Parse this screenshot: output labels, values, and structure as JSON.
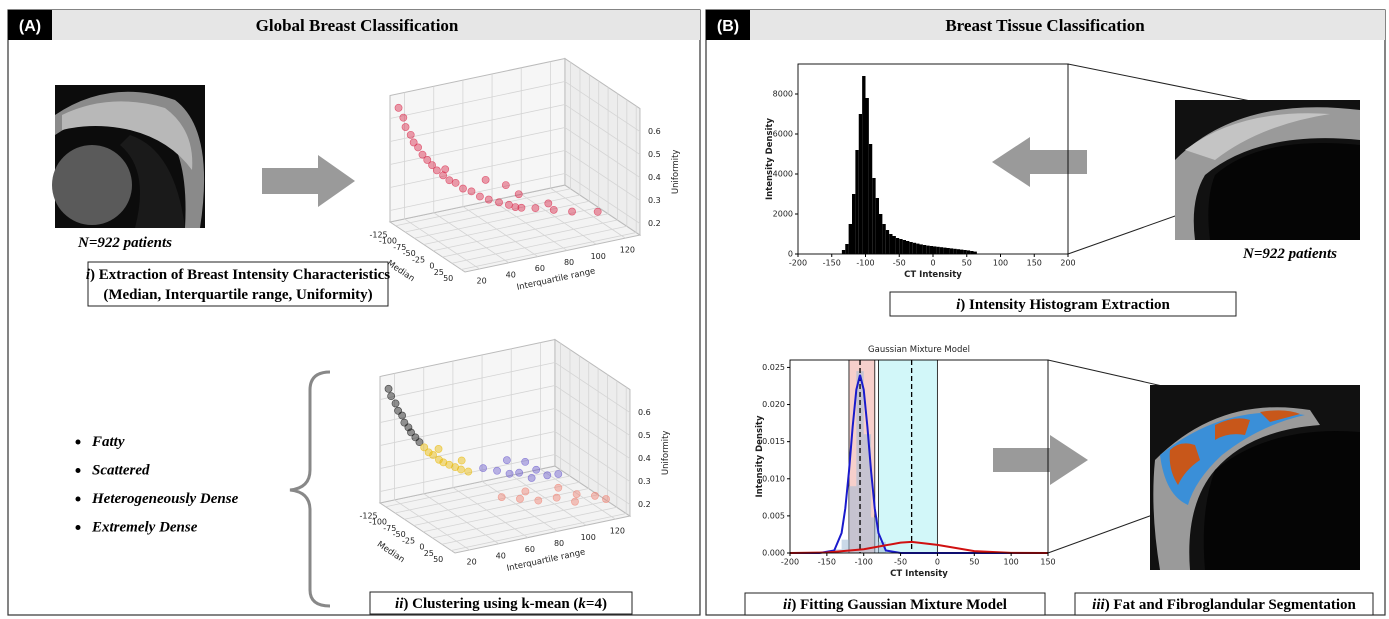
{
  "panel_a": {
    "label": "(A)",
    "title": "Global Breast Classification",
    "patients": "N=922 patients",
    "caption_i": {
      "numeral": "i",
      "text": ") Extraction of Breast Intensity Characteristics",
      "line2": "(Median, Interquartile range, Uniformity)"
    },
    "categories_list": [
      "Fatty",
      "Scattered",
      "Heterogeneously Dense",
      "Extremely Dense"
    ],
    "caption_ii": {
      "numeral": "ii",
      "text": ") Clustering using k-mean (",
      "k": "k",
      "rest": "=4)"
    }
  },
  "panel_b": {
    "label": "(B)",
    "title": "Breast Tissue Classification",
    "patients": "N=922 patients",
    "caption_i": {
      "numeral": "i",
      "text": ") Intensity Histogram Extraction"
    },
    "caption_ii": {
      "numeral": "ii",
      "text": ") Fitting Gaussian Mixture Model"
    },
    "caption_iii": {
      "numeral": "iii",
      "text": ") Fat and Fibroglandular Segmentation"
    }
  },
  "chart_data": [
    {
      "type": "scatter3d",
      "xlabel": "Median",
      "ylabel": "Interquartile range",
      "zlabel": "Uniformity",
      "xlim": [
        -140,
        60
      ],
      "ylim": [
        10,
        130
      ],
      "zlim": [
        0.15,
        0.7
      ],
      "xticks": [
        -125,
        -100,
        -75,
        -50,
        -25,
        0,
        25,
        50
      ],
      "yticks": [
        20,
        40,
        60,
        80,
        100,
        120
      ],
      "zticks": [
        0.2,
        0.3,
        0.4,
        0.5,
        0.6
      ],
      "series": [
        {
          "color": "#d9284a",
          "x": [
            -125,
            -120,
            -118,
            -112,
            -108,
            -104,
            -100,
            -95,
            -90,
            -85,
            -80,
            -75,
            -70,
            -62,
            -55,
            -48,
            -40,
            -32,
            -25,
            -15,
            -5,
            5,
            15,
            25,
            -60,
            -30,
            0,
            -90,
            10,
            -45
          ],
          "y": [
            12,
            14,
            15,
            17,
            18,
            20,
            22,
            24,
            26,
            28,
            31,
            34,
            37,
            40,
            44,
            48,
            52,
            57,
            62,
            68,
            75,
            85,
            95,
            110,
            55,
            70,
            60,
            35,
            80,
            65
          ],
          "z": [
            0.66,
            0.62,
            0.58,
            0.55,
            0.52,
            0.5,
            0.47,
            0.45,
            0.43,
            0.41,
            0.39,
            0.37,
            0.36,
            0.34,
            0.33,
            0.31,
            0.3,
            0.29,
            0.28,
            0.27,
            0.27,
            0.26,
            0.25,
            0.24,
            0.36,
            0.31,
            0.3,
            0.4,
            0.3,
            0.34
          ]
        }
      ]
    },
    {
      "type": "scatter3d",
      "xlabel": "Median",
      "ylabel": "Interquartile range",
      "zlabel": "Uniformity",
      "xlim": [
        -140,
        60
      ],
      "ylim": [
        10,
        130
      ],
      "zlim": [
        0.15,
        0.7
      ],
      "xticks": [
        -125,
        -100,
        -75,
        -50,
        -25,
        0,
        25,
        50
      ],
      "yticks": [
        20,
        40,
        60,
        80,
        100,
        120
      ],
      "zticks": [
        0.2,
        0.3,
        0.4,
        0.5,
        0.6
      ],
      "series": [
        {
          "color": "#111111",
          "x": [
            -125,
            -122,
            -118,
            -115,
            -112,
            -110,
            -107,
            -104,
            -100,
            -97
          ],
          "y": [
            12,
            13,
            15,
            16,
            18,
            19,
            21,
            22,
            24,
            26
          ],
          "z": [
            0.66,
            0.63,
            0.6,
            0.57,
            0.55,
            0.52,
            0.5,
            0.48,
            0.46,
            0.44
          ]
        },
        {
          "color": "#e8b800",
          "x": [
            -92,
            -88,
            -84,
            -80,
            -76,
            -72,
            -68,
            -64,
            -60,
            -85,
            -70
          ],
          "y": [
            28,
            30,
            32,
            35,
            37,
            40,
            43,
            46,
            50,
            36,
            48
          ],
          "z": [
            0.42,
            0.4,
            0.39,
            0.37,
            0.36,
            0.35,
            0.34,
            0.33,
            0.32,
            0.41,
            0.36
          ]
        },
        {
          "color": "#6a5acd",
          "x": [
            -40,
            -30,
            -20,
            -10,
            0,
            -25,
            -15,
            -5,
            -35,
            5
          ],
          "y": [
            55,
            62,
            68,
            72,
            78,
            80,
            85,
            90,
            70,
            95
          ],
          "z": [
            0.35,
            0.34,
            0.33,
            0.34,
            0.32,
            0.36,
            0.33,
            0.31,
            0.37,
            0.32
          ]
        },
        {
          "color": "#f08070",
          "x": [
            -10,
            0,
            10,
            20,
            30,
            5,
            15,
            25,
            -5,
            35
          ],
          "y": [
            60,
            70,
            80,
            90,
            100,
            95,
            105,
            115,
            75,
            120
          ],
          "z": [
            0.25,
            0.24,
            0.23,
            0.24,
            0.22,
            0.26,
            0.23,
            0.22,
            0.26,
            0.21
          ]
        }
      ]
    },
    {
      "type": "histogram",
      "xlabel": "CT Intensity",
      "ylabel": "Intensity Density",
      "color": "#000000",
      "xlim": [
        -200,
        200
      ],
      "ylim": [
        0,
        9500
      ],
      "xticks": [
        -200,
        -150,
        -100,
        -50,
        0,
        50,
        100,
        150,
        200
      ],
      "yticks": [
        0,
        2000,
        4000,
        6000,
        8000
      ],
      "bins": [
        -135,
        -130,
        -125,
        -120,
        -115,
        -110,
        -105,
        -100,
        -95,
        -90,
        -85,
        -80,
        -75,
        -70,
        -65,
        -60,
        -55,
        -50,
        -45,
        -40,
        -35,
        -30,
        -25,
        -20,
        -15,
        -10,
        -5,
        0,
        5,
        10,
        15,
        20,
        25,
        30,
        35,
        40,
        45,
        50,
        55,
        60,
        65
      ],
      "counts": [
        200,
        500,
        1500,
        3000,
        5200,
        7000,
        8900,
        7800,
        5500,
        3800,
        2800,
        2000,
        1500,
        1200,
        1000,
        900,
        800,
        750,
        700,
        650,
        600,
        560,
        520,
        480,
        450,
        420,
        400,
        380,
        360,
        340,
        320,
        300,
        280,
        260,
        240,
        220,
        200,
        180,
        150,
        120
      ]
    },
    {
      "type": "line",
      "title": "Gaussian Mixture Model",
      "xlabel": "CT Intensity",
      "ylabel": "Intensity Density",
      "xlim": [
        -200,
        150
      ],
      "ylim": [
        0,
        0.026
      ],
      "xticks": [
        -200,
        -150,
        -100,
        -50,
        0,
        50,
        100,
        150
      ],
      "yticks": [
        {
          "value": 0,
          "label": "0.000"
        },
        0.005,
        {
          "value": 0.01,
          "label": "0.010"
        },
        0.015,
        {
          "value": 0.02,
          "label": "0.020"
        },
        0.025
      ],
      "bins": [
        -140,
        -130,
        -120,
        -110,
        -100,
        -90,
        -80,
        -70
      ],
      "counts": [
        0.0005,
        0.0018,
        0.009,
        0.0245,
        0.016,
        0.0048,
        0.0015
      ],
      "bar_color": "#9fb9d6",
      "regions": [
        {
          "from": -120,
          "to": -85,
          "color": "#f6cfcb"
        },
        {
          "from": -80,
          "to": 0,
          "color": "#d2f7f9"
        }
      ],
      "means": [
        -105,
        -35
      ],
      "series": [
        {
          "color": "#1a1acc",
          "x": [
            -200,
            -160,
            -140,
            -130,
            -125,
            -120,
            -115,
            -110,
            -105,
            -100,
            -95,
            -90,
            -85,
            -80,
            -70,
            -50,
            0,
            50,
            100,
            150
          ],
          "values": [
            0,
            0,
            0.00034,
            0.0027,
            0.006,
            0.011,
            0.017,
            0.022,
            0.024,
            0.022,
            0.017,
            0.011,
            0.006,
            0.0027,
            0.00034,
            0,
            0,
            0,
            0,
            0
          ]
        },
        {
          "color": "#d01010",
          "x": [
            -200,
            -150,
            -100,
            -50,
            -35,
            0,
            50,
            100,
            150
          ],
          "values": [
            0,
            6e-05,
            0.0005,
            0.0014,
            0.0015,
            0.0011,
            0.00025,
            2e-05,
            0
          ]
        }
      ]
    }
  ]
}
